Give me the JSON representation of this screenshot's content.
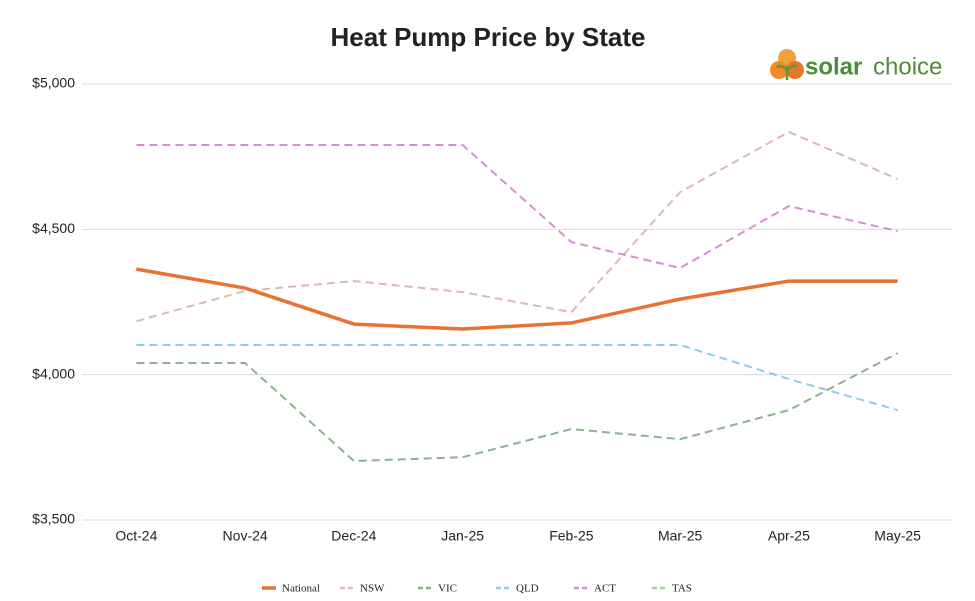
{
  "chart_data": {
    "type": "line",
    "title": "Heat Pump Price by State",
    "logo": {
      "word1": "solar",
      "word2": "choice"
    },
    "categories": [
      "Oct-24",
      "Nov-24",
      "Dec-24",
      "Jan-25",
      "Feb-25",
      "Mar-25",
      "Apr-25",
      "May-25"
    ],
    "series": [
      {
        "name": "National",
        "color": "#e97132",
        "style": "solid",
        "values": [
          4363,
          4298,
          4174,
          4157,
          4178,
          4260,
          4322,
          4322
        ]
      },
      {
        "name": "NSW",
        "color": "#dcbab2",
        "style": "dashed",
        "values": [
          4184,
          4288,
          4322,
          4284,
          4215,
          4628,
          4835,
          4673
        ]
      },
      {
        "name": "VIC",
        "color": "#8ab48b",
        "style": "dashed",
        "values": [
          4040,
          4040,
          3703,
          3716,
          3813,
          3778,
          3878,
          4074
        ]
      },
      {
        "name": "QLD",
        "color": "#8fcde6",
        "style": "dashed",
        "values": [
          4102,
          4102,
          4102,
          4102,
          4102,
          4102,
          3985,
          3878
        ]
      },
      {
        "name": "ACT",
        "color": "#d58fd0",
        "style": "dashed",
        "values": [
          4790,
          4790,
          4790,
          4790,
          4456,
          4367,
          4580,
          4494
        ]
      },
      {
        "name": "TAS",
        "color": "#a6d49b",
        "style": "dashed",
        "values": [
          null,
          null,
          null,
          null,
          null,
          null,
          null,
          null
        ]
      }
    ],
    "ylim": [
      3500,
      5000
    ],
    "yticks": [
      {
        "value": 3500,
        "label": "$3,500"
      },
      {
        "value": 4000,
        "label": "$4,000"
      },
      {
        "value": 4500,
        "label": "$4,500"
      },
      {
        "value": 5000,
        "label": "$5,000"
      }
    ],
    "grid": true,
    "legend": "bottom"
  }
}
